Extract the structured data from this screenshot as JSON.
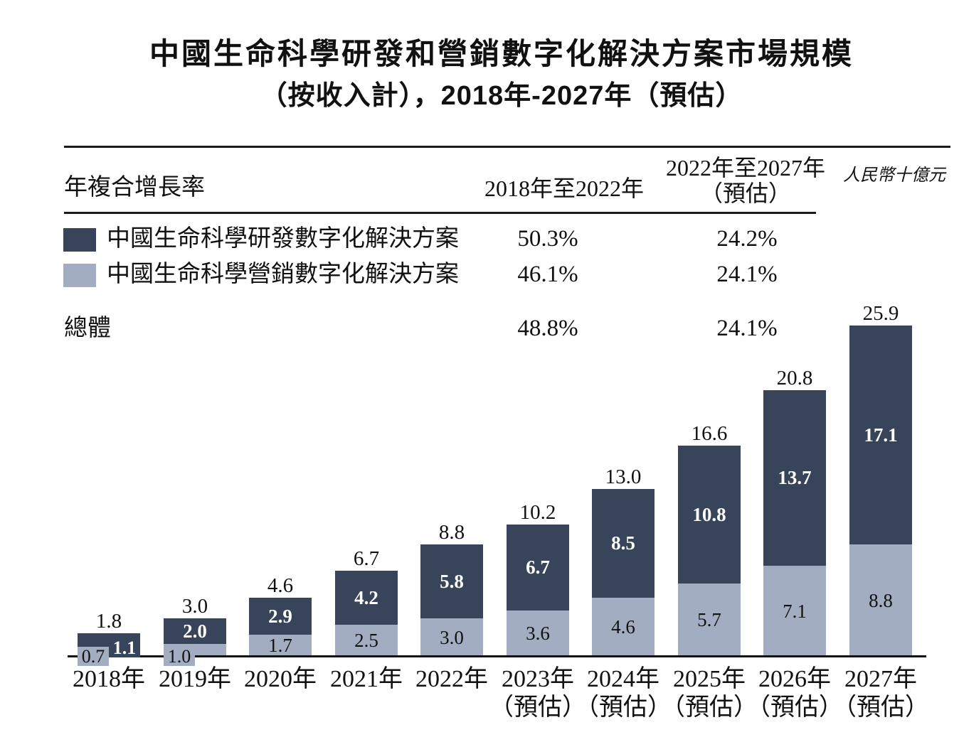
{
  "title": {
    "line1": "中國生命科學研發和營銷數字化解決方案市場規模",
    "line2": "（按收入計），2018年-2027年（預估）"
  },
  "cagr_table": {
    "row_axis_label": "年複合增長率",
    "period1_header": "2018年至2022年",
    "period2_header_line1": "2022年至2027年",
    "period2_header_line2": "（預估）",
    "unit_note": "人民幣十億元",
    "rows": [
      {
        "label": "中國生命科學研發數字化解決方案",
        "swatch_color": "#374459",
        "period1": "50.3%",
        "period2": "24.2%"
      },
      {
        "label": "中國生命科學營銷數字化解決方案",
        "swatch_color": "#a2adc1",
        "period1": "46.1%",
        "period2": "24.1%"
      }
    ],
    "total_row": {
      "label": "總體",
      "period1": "48.8%",
      "period2": "24.1%"
    }
  },
  "chart_data": {
    "type": "bar",
    "stacked": true,
    "categories": [
      "2018年",
      "2019年",
      "2020年",
      "2021年",
      "2022年",
      "2023年",
      "2024年",
      "2025年",
      "2026年",
      "2027年"
    ],
    "forecast_flags": [
      false,
      false,
      false,
      false,
      false,
      true,
      true,
      true,
      true,
      true
    ],
    "forecast_label": "（預估）",
    "series": [
      {
        "name": "中國生命科學營銷數字化解決方案",
        "position": "bottom",
        "color": "#a2adc1",
        "values": [
          0.7,
          1.0,
          1.7,
          2.5,
          3.0,
          3.6,
          4.6,
          5.7,
          7.1,
          8.8
        ]
      },
      {
        "name": "中國生命科學研發數字化解決方案",
        "position": "top",
        "color": "#374459",
        "values": [
          1.1,
          2.0,
          2.9,
          4.2,
          5.8,
          6.7,
          8.5,
          10.8,
          13.7,
          17.1
        ]
      }
    ],
    "totals": [
      1.8,
      3.0,
      4.6,
      6.7,
      8.8,
      10.2,
      13.0,
      16.6,
      20.8,
      25.9
    ],
    "ylabel": "人民幣十億元",
    "axis_color": "#111111",
    "grid": false,
    "legend_position": "top-left-table"
  }
}
